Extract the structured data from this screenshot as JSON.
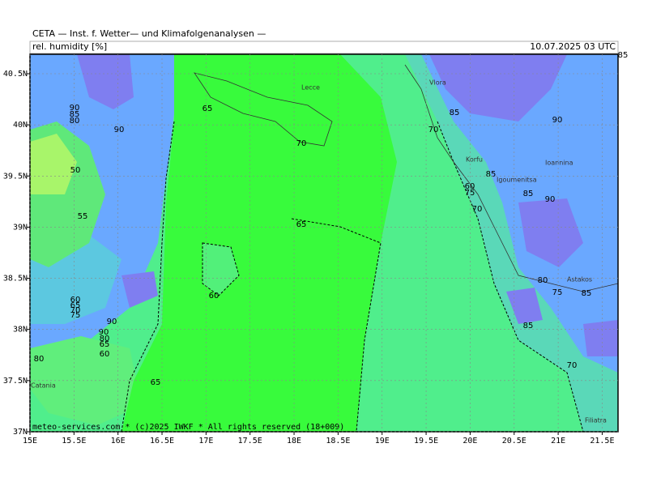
{
  "header": {
    "title": "CETA — Inst. f. Wetter— und Klimafolgenanalysen —",
    "variable": "rel. humidity [%]",
    "valid_time": "10.07.2025 03 UTC"
  },
  "footer": "meteo-services.com * (c)2025 IWKF * All rights reserved (18+009)",
  "map": {
    "xlim": [
      15,
      21.68
    ],
    "ylim": [
      37,
      40.69
    ],
    "grid": true,
    "xticks": [
      {
        "value": 15,
        "label": "15E"
      },
      {
        "value": 15.5,
        "label": "15.5E"
      },
      {
        "value": 16,
        "label": "16E"
      },
      {
        "value": 16.5,
        "label": "16.5E"
      },
      {
        "value": 17,
        "label": "17E"
      },
      {
        "value": 17.5,
        "label": "17.5E"
      },
      {
        "value": 18,
        "label": "18E"
      },
      {
        "value": 18.5,
        "label": "18.5E"
      },
      {
        "value": 19,
        "label": "19E"
      },
      {
        "value": 19.5,
        "label": "19.5E"
      },
      {
        "value": 20,
        "label": "20E"
      },
      {
        "value": 20.5,
        "label": "20.5E"
      },
      {
        "value": 21,
        "label": "21E"
      },
      {
        "value": 21.5,
        "label": "21.5E"
      }
    ],
    "yticks": [
      {
        "value": 37,
        "label": "37N"
      },
      {
        "value": 37.5,
        "label": "37.5N"
      },
      {
        "value": 38,
        "label": "38N"
      },
      {
        "value": 38.5,
        "label": "38.5N"
      },
      {
        "value": 39,
        "label": "39N"
      },
      {
        "value": 39.5,
        "label": "39.5N"
      },
      {
        "value": 40,
        "label": "40N"
      },
      {
        "value": 40.5,
        "label": "40.5N"
      }
    ]
  },
  "places": [
    "Lecce",
    "Vlora",
    "Korfu",
    "Igoumenitsa",
    "Ioannina",
    "Astakos",
    "Filiatra",
    "Catania"
  ],
  "contour_labels": [
    "90",
    "85",
    "80",
    "90",
    "50",
    "55",
    "65",
    "70",
    "65",
    "60",
    "85",
    "70",
    "90",
    "85",
    "60",
    "75",
    "70",
    "85",
    "90",
    "80",
    "75",
    "65",
    "85",
    "70",
    "60",
    "65",
    "70",
    "75",
    "80",
    "90",
    "80",
    "65",
    "60",
    "85",
    "85",
    "90"
  ]
}
